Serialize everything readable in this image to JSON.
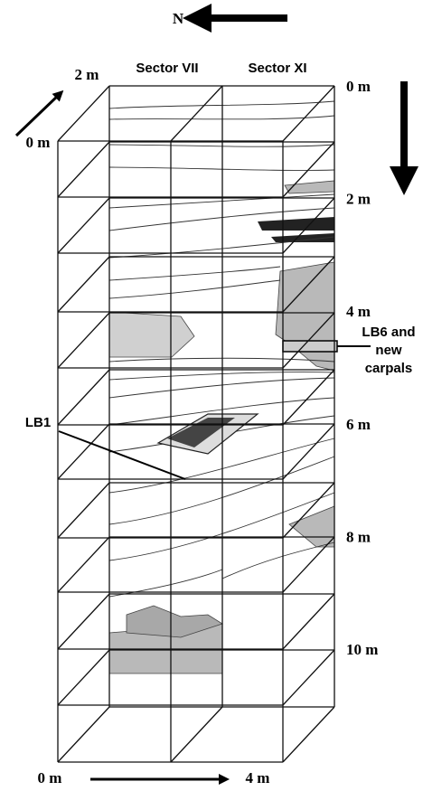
{
  "north_label": "N",
  "diagonal_axis": {
    "start": "0 m",
    "end": "2 m"
  },
  "sectors": [
    "Sector VII",
    "Sector XI"
  ],
  "depth_labels": [
    "0 m",
    "2 m",
    "4 m",
    "6 m",
    "8 m",
    "10 m"
  ],
  "width_axis": {
    "start": "0 m",
    "end": "4 m"
  },
  "finds": [
    {
      "label": "LB1"
    },
    {
      "label_lines": [
        "LB6 and",
        "new",
        "carpals"
      ]
    }
  ]
}
